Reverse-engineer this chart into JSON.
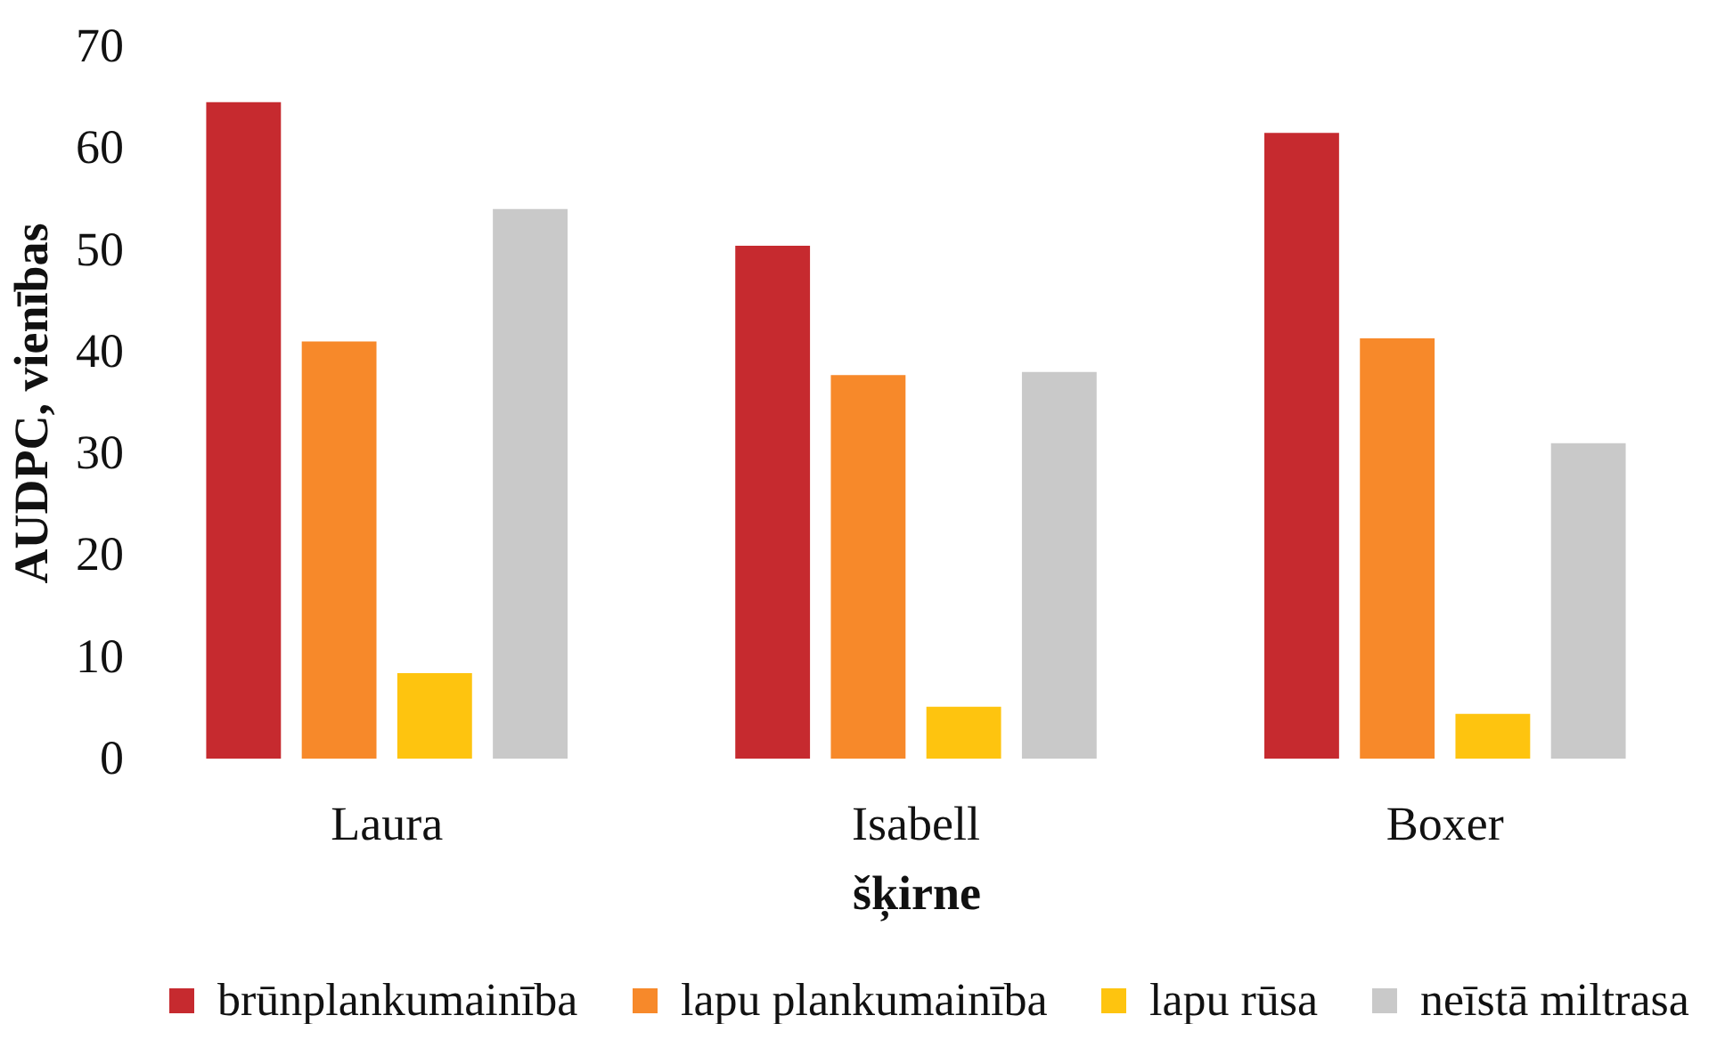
{
  "chart_data": {
    "type": "bar",
    "categories": [
      "Laura",
      "Isabell",
      "Boxer"
    ],
    "series": [
      {
        "name": "brūnplankumainība",
        "color": "#c62a2f",
        "values": [
          64.5,
          50.4,
          61.5
        ]
      },
      {
        "name": "lapu plankumainība",
        "color": "#f7892a",
        "values": [
          41,
          37.7,
          41.3
        ]
      },
      {
        "name": "lapu rūsa",
        "color": "#fec40f",
        "values": [
          8.4,
          5.1,
          4.4
        ]
      },
      {
        "name": "neīstā miltrasa",
        "color": "#c9c9c9",
        "values": [
          54,
          38,
          31
        ]
      }
    ],
    "xlabel": "šķirne",
    "ylabel": "AUDPC, vienības",
    "ylim": [
      0,
      70
    ],
    "yticks": [
      0,
      10,
      20,
      30,
      40,
      50,
      60,
      70
    ],
    "legend": "bottom"
  }
}
